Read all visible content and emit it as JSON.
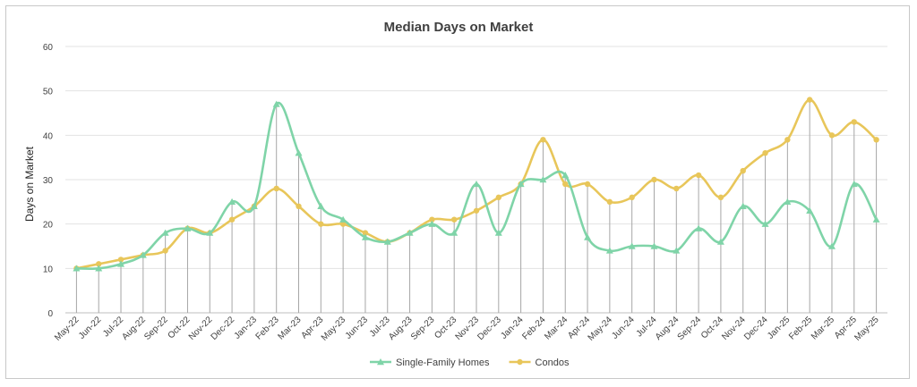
{
  "chart_data": {
    "type": "line",
    "title": "Median Days on Market",
    "xlabel": "",
    "ylabel": "Days on Market",
    "ylim": [
      0,
      60
    ],
    "yticks": [
      0,
      10,
      20,
      30,
      40,
      50,
      60
    ],
    "grid": true,
    "legend_position": "bottom",
    "categories": [
      "May-22",
      "Jun-22",
      "Jul-22",
      "Aug-22",
      "Sep-22",
      "Oct-22",
      "Nov-22",
      "Dec-22",
      "Jan-23",
      "Feb-23",
      "Mar-23",
      "Apr-23",
      "May-23",
      "Jun-23",
      "Jul-23",
      "Aug-23",
      "Sep-23",
      "Oct-23",
      "Nov-23",
      "Dec-23",
      "Jan-24",
      "Feb-24",
      "Mar-24",
      "Apr-24",
      "May-24",
      "Jun-24",
      "Jul-24",
      "Aug-24",
      "Sep-24",
      "Oct-24",
      "Nov-24",
      "Dec-24",
      "Jan-25",
      "Feb-25",
      "Mar-25",
      "Apr-25",
      "May-25"
    ],
    "series": [
      {
        "name": "Single-Family Homes",
        "color": "#7fd4a8",
        "marker": "triangle",
        "values": [
          10,
          10,
          11,
          13,
          18,
          19,
          18,
          25,
          24,
          47,
          36,
          24,
          21,
          17,
          16,
          18,
          20,
          18,
          29,
          18,
          29,
          30,
          31,
          17,
          14,
          15,
          15,
          14,
          19,
          16,
          24,
          20,
          25,
          23,
          15,
          29,
          21
        ]
      },
      {
        "name": "Condos",
        "color": "#e8c65a",
        "marker": "circle",
        "values": [
          10,
          11,
          12,
          13,
          14,
          19,
          18,
          21,
          24,
          28,
          24,
          20,
          20,
          18,
          16,
          18,
          21,
          21,
          23,
          26,
          29,
          39,
          29,
          29,
          25,
          26,
          30,
          28,
          31,
          26,
          32,
          36,
          39,
          48,
          40,
          43,
          39
        ]
      }
    ]
  }
}
